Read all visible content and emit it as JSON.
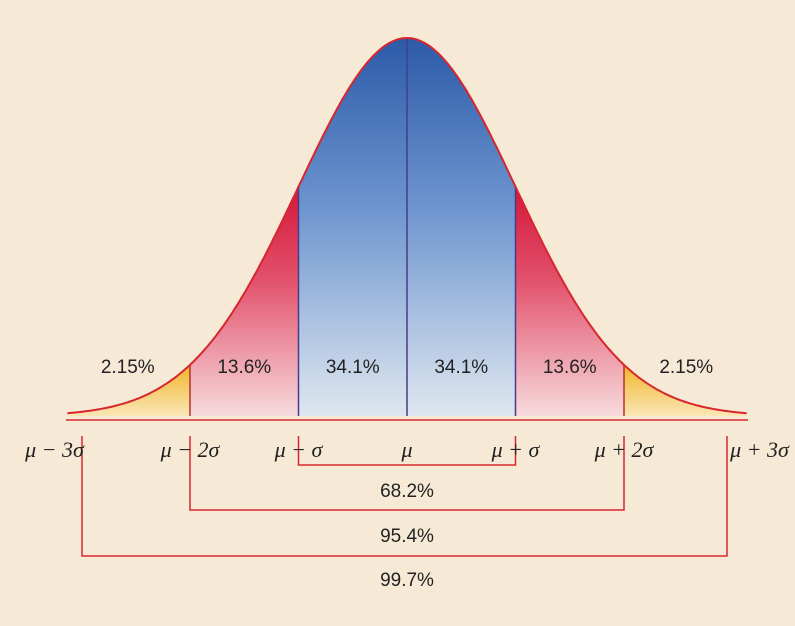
{
  "regions": [
    "2.15%",
    "13.6%",
    "34.1%",
    "34.1%",
    "13.6%",
    "2.15%"
  ],
  "axis_labels": [
    "μ − 3σ",
    "μ − 2σ",
    "μ − σ",
    "μ",
    "μ + σ",
    "μ + 2σ",
    "μ + 3σ"
  ],
  "brackets": [
    "68.2%",
    "95.4%",
    "99.7%"
  ]
}
